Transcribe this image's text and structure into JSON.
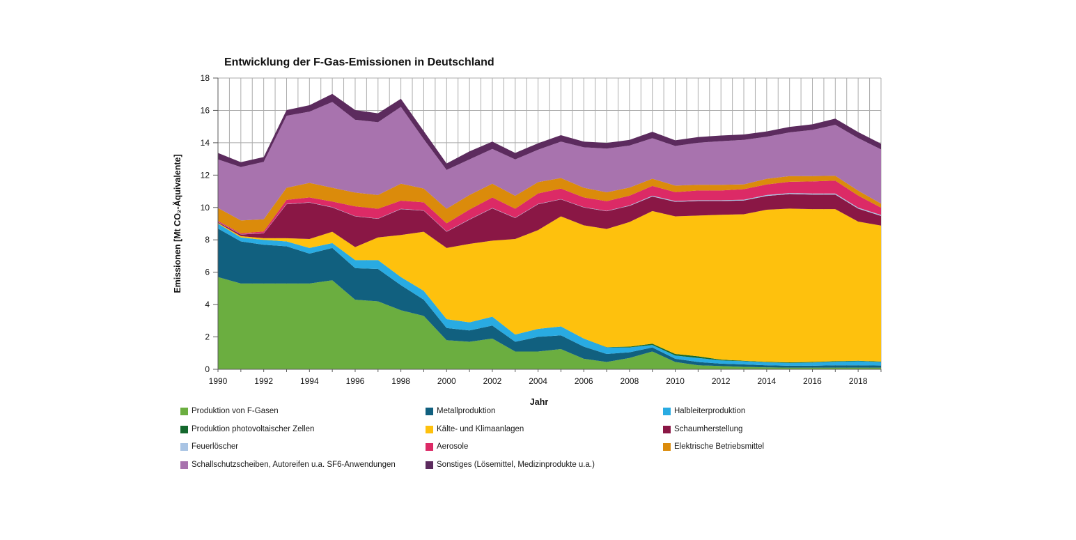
{
  "title": "Entwicklung der F-Gas-Emissionen in Deutschland",
  "chart_data": {
    "type": "area",
    "stacked": true,
    "title": "Entwicklung der F-Gas-Emissionen in Deutschland",
    "xlabel": "Jahr",
    "ylabel": "Emissionen [Mt CO₂-Äquivalente]",
    "ylim": [
      0,
      18
    ],
    "ytick_step": 2,
    "grid": "both",
    "legend_position": "bottom",
    "x": [
      1990,
      1991,
      1992,
      1993,
      1994,
      1995,
      1996,
      1997,
      1998,
      1999,
      2000,
      2001,
      2002,
      2003,
      2004,
      2005,
      2006,
      2007,
      2008,
      2009,
      2010,
      2011,
      2012,
      2013,
      2014,
      2015,
      2016,
      2017,
      2018,
      2019
    ],
    "xticks": [
      {
        "i": 0,
        "label": "1990"
      },
      {
        "i": 2,
        "label": "1992"
      },
      {
        "i": 4,
        "label": "1994"
      },
      {
        "i": 6,
        "label": "1996"
      },
      {
        "i": 8,
        "label": "1998"
      },
      {
        "i": 10,
        "label": "2000"
      },
      {
        "i": 12,
        "label": "2002"
      },
      {
        "i": 14,
        "label": "2004"
      },
      {
        "i": 16,
        "label": "2006"
      },
      {
        "i": 18,
        "label": "2008"
      },
      {
        "i": 20,
        "label": "2010"
      },
      {
        "i": 22,
        "label": "2012"
      },
      {
        "i": 24,
        "label": "2014"
      },
      {
        "i": 26,
        "label": "2016"
      },
      {
        "i": 28,
        "label": "2018"
      }
    ],
    "yticks": [
      "0",
      "2",
      "4",
      "6",
      "8",
      "10",
      "12",
      "14",
      "16",
      "18"
    ],
    "series": [
      {
        "name": "Produktion von F-Gasen",
        "color": "#6BAE40",
        "values": [
          5.7,
          5.3,
          5.3,
          5.3,
          5.3,
          5.5,
          4.3,
          4.2,
          3.65,
          3.3,
          1.8,
          1.7,
          1.9,
          1.1,
          1.1,
          1.25,
          0.65,
          0.45,
          0.7,
          1.1,
          0.45,
          0.25,
          0.2,
          0.15,
          0.12,
          0.1,
          0.1,
          0.1,
          0.1,
          0.1
        ]
      },
      {
        "name": "Metallproduktion",
        "color": "#11607F",
        "values": [
          3.0,
          2.6,
          2.4,
          2.3,
          1.85,
          2.0,
          1.95,
          2.0,
          1.55,
          1.0,
          0.75,
          0.7,
          0.8,
          0.6,
          0.9,
          0.85,
          0.75,
          0.5,
          0.35,
          0.25,
          0.2,
          0.2,
          0.15,
          0.15,
          0.13,
          0.12,
          0.12,
          0.15,
          0.15,
          0.13
        ]
      },
      {
        "name": "Halbleiterproduktion",
        "color": "#29ABE2",
        "values": [
          0.3,
          0.25,
          0.3,
          0.3,
          0.35,
          0.3,
          0.5,
          0.55,
          0.5,
          0.55,
          0.55,
          0.5,
          0.55,
          0.45,
          0.5,
          0.55,
          0.5,
          0.4,
          0.3,
          0.15,
          0.2,
          0.25,
          0.2,
          0.2,
          0.18,
          0.18,
          0.2,
          0.22,
          0.25,
          0.22
        ]
      },
      {
        "name": "Produktion photovoltaischer Zellen",
        "color": "#14682D",
        "values": [
          0,
          0,
          0,
          0,
          0,
          0,
          0,
          0,
          0,
          0,
          0,
          0,
          0,
          0,
          0,
          0,
          0,
          0.02,
          0.05,
          0.08,
          0.1,
          0.1,
          0.05,
          0.03,
          0.03,
          0.03,
          0.03,
          0.03,
          0.03,
          0.03
        ]
      },
      {
        "name": "Kälte- und Klimaanlagen",
        "color": "#FEC10D",
        "values": [
          0.05,
          0.08,
          0.1,
          0.2,
          0.55,
          0.7,
          0.8,
          1.4,
          2.6,
          3.65,
          4.4,
          4.85,
          4.7,
          5.9,
          6.1,
          6.8,
          7.0,
          7.3,
          7.7,
          8.2,
          8.5,
          8.7,
          8.95,
          9.05,
          9.4,
          9.5,
          9.45,
          9.4,
          8.6,
          8.4
        ]
      },
      {
        "name": "Schaumherstellung",
        "color": "#8A1745",
        "values": [
          0.05,
          0.1,
          0.3,
          2.1,
          2.25,
          1.5,
          1.9,
          1.15,
          1.6,
          1.3,
          1.0,
          1.5,
          2.0,
          1.3,
          1.6,
          1.05,
          1.1,
          1.1,
          1.0,
          0.9,
          0.9,
          0.9,
          0.85,
          0.85,
          0.85,
          0.9,
          0.9,
          0.9,
          0.8,
          0.6
        ]
      },
      {
        "name": "Feuerlöscher",
        "color": "#A9C4E4",
        "values": [
          0.02,
          0.02,
          0.02,
          0.02,
          0.02,
          0.02,
          0.02,
          0.02,
          0.02,
          0.02,
          0.02,
          0.02,
          0.02,
          0.02,
          0.02,
          0.02,
          0.02,
          0.02,
          0.03,
          0.05,
          0.05,
          0.05,
          0.05,
          0.05,
          0.06,
          0.06,
          0.06,
          0.06,
          0.06,
          0.06
        ]
      },
      {
        "name": "Aerosole",
        "color": "#DC2A66",
        "values": [
          0.05,
          0.05,
          0.1,
          0.25,
          0.3,
          0.35,
          0.6,
          0.6,
          0.5,
          0.5,
          0.5,
          0.6,
          0.65,
          0.55,
          0.65,
          0.65,
          0.6,
          0.6,
          0.6,
          0.6,
          0.55,
          0.6,
          0.6,
          0.65,
          0.65,
          0.7,
          0.75,
          0.8,
          0.75,
          0.45
        ]
      },
      {
        "name": "Elektrische Betriebsmittel",
        "color": "#DB8B0B",
        "values": [
          0.8,
          0.8,
          0.75,
          0.75,
          0.9,
          0.85,
          0.85,
          0.85,
          1.05,
          0.85,
          0.9,
          0.9,
          0.85,
          0.8,
          0.7,
          0.65,
          0.6,
          0.55,
          0.5,
          0.45,
          0.4,
          0.35,
          0.35,
          0.3,
          0.35,
          0.35,
          0.33,
          0.3,
          0.3,
          0.25
        ]
      },
      {
        "name": "Schallschutzscheiben, Autoreifen u.a. SF6-Anwendungen",
        "color": "#A873AE",
        "values": [
          3.0,
          3.3,
          3.55,
          4.45,
          4.4,
          5.3,
          4.5,
          4.5,
          4.75,
          3.05,
          2.4,
          2.2,
          2.15,
          2.25,
          2.0,
          2.25,
          2.5,
          2.7,
          2.6,
          2.5,
          2.45,
          2.6,
          2.7,
          2.75,
          2.6,
          2.7,
          2.85,
          3.15,
          3.25,
          3.35
        ]
      },
      {
        "name": "Sonstiges (Lösemittel, Medizinprodukte u.a.)",
        "color": "#5C2B5E",
        "values": [
          0.4,
          0.3,
          0.3,
          0.35,
          0.4,
          0.5,
          0.6,
          0.55,
          0.5,
          0.5,
          0.4,
          0.5,
          0.45,
          0.4,
          0.4,
          0.4,
          0.35,
          0.35,
          0.35,
          0.4,
          0.35,
          0.35,
          0.35,
          0.33,
          0.33,
          0.34,
          0.35,
          0.38,
          0.37,
          0.35
        ]
      }
    ]
  },
  "style": {
    "grid_color": "#ABABAB",
    "axis_color": "#595959",
    "text_color": "#111111",
    "background": "#FFFFFF"
  }
}
